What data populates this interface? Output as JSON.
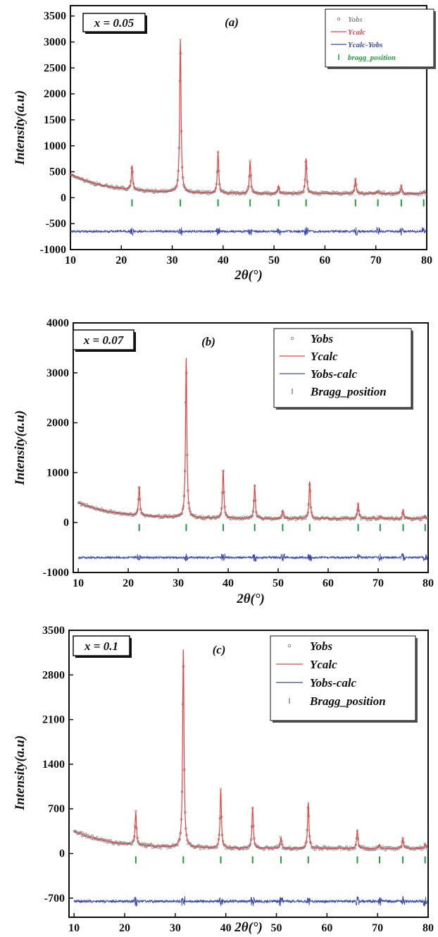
{
  "chart_data": [
    {
      "type": "line",
      "panel_label": "(a)",
      "composition_label": "x = 0.05",
      "xlabel": "2θ(°)",
      "ylabel": "Intensity(a.u)",
      "xlim": [
        10,
        80
      ],
      "ylim": [
        -1000,
        3700
      ],
      "xticks": [
        10,
        20,
        30,
        40,
        50,
        60,
        70,
        80
      ],
      "yticks": [
        -1000,
        -500,
        0,
        500,
        1000,
        1500,
        2000,
        2500,
        3000,
        3500
      ],
      "legend": [
        "Yobs",
        "Ycalc",
        "Ycalc-Yobs",
        "bragg_position"
      ],
      "background": {
        "at_10": 450,
        "floor": 80
      },
      "peaks": [
        {
          "x": 22.1,
          "y": 620
        },
        {
          "x": 31.6,
          "y": 3060
        },
        {
          "x": 39.0,
          "y": 880
        },
        {
          "x": 45.3,
          "y": 700
        },
        {
          "x": 50.9,
          "y": 230
        },
        {
          "x": 56.3,
          "y": 760
        },
        {
          "x": 66.0,
          "y": 360
        },
        {
          "x": 70.4,
          "y": 130
        },
        {
          "x": 75.0,
          "y": 230
        },
        {
          "x": 79.4,
          "y": 130
        }
      ],
      "bragg_positions": [
        22.1,
        31.6,
        39.0,
        45.3,
        50.9,
        56.3,
        66.0,
        70.4,
        75.0,
        79.4
      ],
      "bragg_y": -100,
      "difference_offset": -650
    },
    {
      "type": "line",
      "panel_label": "(b)",
      "composition_label": "x = 0.07",
      "xlabel": "2θ(°)",
      "ylabel": "Intensity(a.u)",
      "xlim": [
        9,
        80
      ],
      "ylim": [
        -1000,
        4000
      ],
      "xticks": [
        10,
        20,
        30,
        40,
        50,
        60,
        70,
        80
      ],
      "yticks": [
        -1000,
        0,
        1000,
        2000,
        3000,
        4000
      ],
      "legend": [
        "Yobs",
        "Ycalc",
        "Yobs-calc",
        "Bragg_position"
      ],
      "background": {
        "at_10": 400,
        "floor": 80
      },
      "peaks": [
        {
          "x": 22.2,
          "y": 720
        },
        {
          "x": 31.6,
          "y": 3300
        },
        {
          "x": 39.0,
          "y": 1050
        },
        {
          "x": 45.3,
          "y": 750
        },
        {
          "x": 50.9,
          "y": 240
        },
        {
          "x": 56.3,
          "y": 820
        },
        {
          "x": 66.0,
          "y": 380
        },
        {
          "x": 70.4,
          "y": 130
        },
        {
          "x": 75.0,
          "y": 240
        },
        {
          "x": 79.4,
          "y": 140
        }
      ],
      "bragg_positions": [
        22.2,
        31.6,
        39.0,
        45.3,
        50.9,
        56.3,
        66.0,
        70.4,
        75.0,
        79.4
      ],
      "bragg_y": -100,
      "difference_offset": -700
    },
    {
      "type": "line",
      "panel_label": "(c)",
      "composition_label": "x = 0.1",
      "xlabel": "2θ(°)",
      "ylabel": "Intensity(a.u)",
      "xlim": [
        9,
        80
      ],
      "ylim": [
        -1000,
        3500
      ],
      "xticks": [
        10,
        20,
        30,
        40,
        50,
        60,
        70,
        80
      ],
      "yticks": [
        -700,
        0,
        700,
        1400,
        2100,
        2800,
        3500
      ],
      "legend": [
        "Yobs",
        "Ycalc",
        "Yobs-calc",
        "Bragg_position"
      ],
      "background": {
        "at_10": 350,
        "floor": 80
      },
      "peaks": [
        {
          "x": 22.2,
          "y": 650
        },
        {
          "x": 31.6,
          "y": 3200
        },
        {
          "x": 39.0,
          "y": 1000
        },
        {
          "x": 45.3,
          "y": 720
        },
        {
          "x": 50.9,
          "y": 250
        },
        {
          "x": 56.3,
          "y": 800
        },
        {
          "x": 66.0,
          "y": 360
        },
        {
          "x": 70.4,
          "y": 140
        },
        {
          "x": 75.0,
          "y": 230
        },
        {
          "x": 79.4,
          "y": 150
        }
      ],
      "bragg_positions": [
        22.2,
        31.6,
        39.0,
        45.3,
        50.9,
        56.3,
        66.0,
        70.4,
        75.0,
        79.4
      ],
      "bragg_y": -100,
      "difference_offset": -750
    }
  ],
  "colors": {
    "obs": "#8a8a8a",
    "calc": "#e84040",
    "diff": "#3a48b0",
    "bragg": "#1f9d3a",
    "bragg_legend_b_c": "#888888"
  }
}
